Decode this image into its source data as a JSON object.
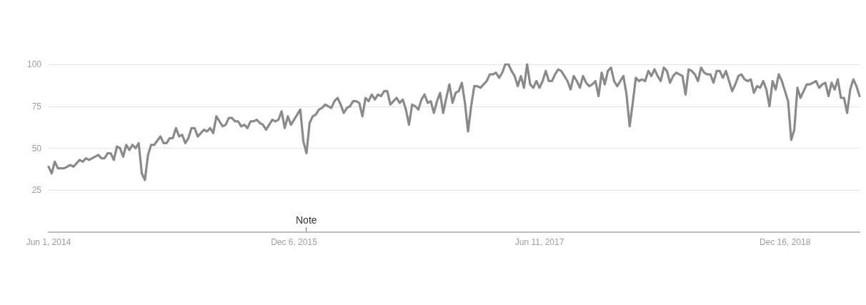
{
  "chart_data": {
    "type": "line",
    "xlim": [
      "2014-06-01",
      "2019-06-02"
    ],
    "ylim": [
      0,
      100
    ],
    "xticks": [
      {
        "value": "2014-06-01",
        "label": "Jun 1, 2014"
      },
      {
        "value": "2015-12-06",
        "label": "Dec 6, 2015"
      },
      {
        "value": "2017-06-11",
        "label": "Jun 11, 2017"
      },
      {
        "value": "2018-12-16",
        "label": "Dec 16, 2018"
      }
    ],
    "yticks": [
      25,
      50,
      75,
      100
    ],
    "grid": "y",
    "marker": "none",
    "line_style": "solid",
    "annotations": [
      "Note"
    ],
    "x": [
      "2014-06-01",
      "2014-06-08",
      "2014-06-15",
      "2014-06-22",
      "2014-06-29",
      "2014-07-06",
      "2014-07-20",
      "2014-07-27",
      "2014-08-03",
      "2014-08-10",
      "2014-08-17",
      "2014-08-24",
      "2014-08-31",
      "2014-09-07",
      "2014-09-21",
      "2014-09-28",
      "2014-10-05",
      "2014-10-12",
      "2014-10-19",
      "2014-10-26",
      "2014-11-02",
      "2014-11-09",
      "2014-11-16",
      "2014-11-23",
      "2014-11-30",
      "2014-12-07",
      "2014-12-14",
      "2014-12-21",
      "2014-12-28",
      "2015-01-04",
      "2015-01-11",
      "2015-01-18",
      "2015-01-25",
      "2015-02-08",
      "2015-02-15",
      "2015-02-22",
      "2015-03-01",
      "2015-03-08",
      "2015-03-15",
      "2015-03-22",
      "2015-03-29",
      "2015-04-05",
      "2015-04-12",
      "2015-04-19",
      "2015-04-26",
      "2015-05-03",
      "2015-05-10",
      "2015-05-17",
      "2015-05-24",
      "2015-05-31",
      "2015-06-07",
      "2015-06-14",
      "2015-06-21",
      "2015-06-28",
      "2015-07-05",
      "2015-07-12",
      "2015-07-19",
      "2015-07-26",
      "2015-08-02",
      "2015-08-09",
      "2015-08-16",
      "2015-08-23",
      "2015-08-30",
      "2015-09-06",
      "2015-09-13",
      "2015-09-20",
      "2015-09-27",
      "2015-10-04",
      "2015-10-11",
      "2015-10-18",
      "2015-10-25",
      "2015-11-01",
      "2015-11-08",
      "2015-11-15",
      "2015-11-22",
      "2015-11-29",
      "2015-12-06",
      "2015-12-13",
      "2015-12-20",
      "2015-12-27",
      "2016-01-03",
      "2016-01-10",
      "2016-01-17",
      "2016-01-24",
      "2016-01-31",
      "2016-02-07",
      "2016-02-14",
      "2016-02-21",
      "2016-02-28",
      "2016-03-06",
      "2016-03-13",
      "2016-03-20",
      "2016-03-27",
      "2016-04-03",
      "2016-04-10",
      "2016-04-17",
      "2016-04-24",
      "2016-05-01",
      "2016-05-08",
      "2016-05-15",
      "2016-05-22",
      "2016-05-29",
      "2016-06-05",
      "2016-06-12",
      "2016-06-19",
      "2016-06-26",
      "2016-07-03",
      "2016-07-10",
      "2016-07-17",
      "2016-07-24",
      "2016-07-31",
      "2016-08-07",
      "2016-08-14",
      "2016-08-21",
      "2016-08-28",
      "2016-09-04",
      "2016-09-11",
      "2016-09-18",
      "2016-09-25",
      "2016-10-02",
      "2016-10-09",
      "2016-10-16",
      "2016-10-23",
      "2016-10-30",
      "2016-11-06",
      "2016-11-13",
      "2016-11-20",
      "2016-11-27",
      "2016-12-04",
      "2016-12-11",
      "2016-12-18",
      "2016-12-25",
      "2017-01-01",
      "2017-01-08",
      "2017-01-15",
      "2017-01-22",
      "2017-01-29",
      "2017-02-05",
      "2017-02-12",
      "2017-02-19",
      "2017-02-26",
      "2017-03-05",
      "2017-03-12",
      "2017-03-19",
      "2017-03-26",
      "2017-04-02",
      "2017-04-09",
      "2017-04-16",
      "2017-04-23",
      "2017-04-30",
      "2017-05-07",
      "2017-05-14",
      "2017-05-21",
      "2017-05-28",
      "2017-06-04",
      "2017-06-11",
      "2017-06-18",
      "2017-06-25",
      "2017-07-02",
      "2017-07-09",
      "2017-07-16",
      "2017-07-23",
      "2017-07-30",
      "2017-08-06",
      "2017-08-13",
      "2017-08-20",
      "2017-08-27",
      "2017-09-03",
      "2017-09-10",
      "2017-09-17",
      "2017-09-24",
      "2017-10-01",
      "2017-10-08",
      "2017-10-15",
      "2017-10-22",
      "2017-10-29",
      "2017-11-05",
      "2017-11-12",
      "2017-11-19",
      "2017-11-26",
      "2017-12-03",
      "2017-12-10",
      "2017-12-17",
      "2017-12-24",
      "2017-12-31",
      "2018-01-07",
      "2018-01-14",
      "2018-01-21",
      "2018-01-28",
      "2018-02-04",
      "2018-02-11",
      "2018-02-18",
      "2018-02-25",
      "2018-03-04",
      "2018-03-11",
      "2018-03-18",
      "2018-03-25",
      "2018-04-01",
      "2018-04-08",
      "2018-04-15",
      "2018-04-22",
      "2018-04-29",
      "2018-05-06",
      "2018-05-13",
      "2018-05-20",
      "2018-05-27",
      "2018-06-03",
      "2018-06-10",
      "2018-06-17",
      "2018-06-24",
      "2018-07-01",
      "2018-07-08",
      "2018-07-15",
      "2018-07-22",
      "2018-07-29",
      "2018-08-05",
      "2018-08-12",
      "2018-08-19",
      "2018-08-26",
      "2018-09-02",
      "2018-09-09",
      "2018-09-16",
      "2018-09-23",
      "2018-09-30",
      "2018-10-07",
      "2018-10-14",
      "2018-10-21",
      "2018-10-28",
      "2018-11-04",
      "2018-11-11",
      "2018-11-18",
      "2018-11-25",
      "2018-12-02",
      "2018-12-09",
      "2018-12-16",
      "2018-12-23",
      "2018-12-30",
      "2019-01-06",
      "2019-01-13",
      "2019-01-20",
      "2019-01-27",
      "2019-02-03",
      "2019-02-10",
      "2019-02-17",
      "2019-02-24",
      "2019-03-03",
      "2019-03-10",
      "2019-03-17",
      "2019-03-24",
      "2019-03-31",
      "2019-04-07",
      "2019-04-14",
      "2019-04-21",
      "2019-04-28",
      "2019-05-05",
      "2019-05-12",
      "2019-05-19",
      "2019-05-26",
      "2019-06-02"
    ],
    "series": [
      {
        "color": "#8a8a8a",
        "values": [
          39,
          35,
          42,
          38,
          38,
          38,
          40,
          39,
          41,
          43,
          42,
          44,
          43,
          44,
          46,
          44,
          44,
          47,
          47,
          43,
          51,
          50,
          45,
          52,
          49,
          52,
          50,
          53,
          35,
          31,
          46,
          52,
          52,
          57,
          53,
          53,
          56,
          56,
          62,
          57,
          58,
          53,
          56,
          62,
          62,
          57,
          59,
          61,
          60,
          62,
          59,
          69,
          66,
          63,
          64,
          68,
          68,
          66,
          66,
          63,
          64,
          62,
          66,
          66,
          67,
          65,
          64,
          61,
          64,
          67,
          66,
          67,
          72,
          62,
          69,
          64,
          67,
          70,
          73,
          54,
          47,
          65,
          69,
          70,
          73,
          74,
          76,
          75,
          74,
          78,
          80,
          76,
          71,
          74,
          75,
          78,
          78,
          77,
          69,
          80,
          78,
          82,
          79,
          82,
          81,
          84,
          84,
          76,
          78,
          80,
          77,
          79,
          73,
          64,
          76,
          75,
          73,
          79,
          82,
          77,
          78,
          71,
          78,
          83,
          71,
          80,
          88,
          77,
          83,
          84,
          89,
          77,
          60,
          75,
          87,
          87,
          86,
          88,
          90,
          94,
          94,
          95,
          92,
          95,
          100,
          100,
          96,
          93,
          87,
          93,
          86,
          100,
          88,
          86,
          90,
          86,
          90,
          96,
          90,
          90,
          94,
          97,
          96,
          93,
          90,
          85,
          93,
          90,
          86,
          93,
          89,
          87,
          88,
          90,
          81,
          95,
          88,
          96,
          98,
          90,
          87,
          90,
          93,
          82,
          63,
          77,
          92,
          90,
          91,
          90,
          96,
          93,
          97,
          93,
          90,
          98,
          96,
          89,
          93,
          95,
          94,
          93,
          82,
          97,
          96,
          94,
          90,
          98,
          95,
          94,
          94,
          89,
          96,
          96,
          92,
          96,
          90,
          84,
          88,
          93,
          94,
          91,
          90,
          91,
          83,
          87,
          86,
          90,
          85,
          75,
          90,
          85,
          94,
          90,
          84,
          78,
          55,
          61,
          86,
          80,
          84,
          88,
          88,
          89,
          90,
          86,
          88,
          89,
          81,
          89,
          85,
          91,
          80,
          80,
          71,
          85,
          91,
          87,
          81
        ]
      }
    ]
  }
}
